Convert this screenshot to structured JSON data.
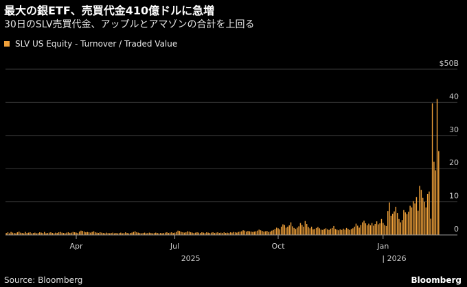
{
  "header": {
    "title": "最大の銀ETF、売買代金410億ドルに急増",
    "subtitle": "30日のSLV売買代金、アップルとアマゾンの合計を上回る"
  },
  "footer": {
    "source": "Source: Bloomberg",
    "brand": "Bloomberg"
  },
  "colors": {
    "background": "#000000",
    "bar": "#f0a13a",
    "grid": "#3a3a3a",
    "text": "#cfcfcf"
  },
  "chart_data": {
    "type": "bar",
    "series": [
      {
        "name": "SLV US Equity - Turnover / Traded Value",
        "values": [
          0.6,
          0.8,
          0.5,
          0.9,
          0.7,
          0.6,
          0.5,
          0.8,
          1.0,
          0.7,
          0.6,
          0.5,
          0.9,
          0.6,
          0.7,
          0.8,
          0.5,
          0.6,
          0.7,
          0.5,
          0.6,
          0.8,
          0.7,
          0.6,
          0.9,
          0.5,
          0.6,
          0.7,
          0.8,
          0.6,
          0.5,
          0.7,
          0.6,
          0.8,
          0.9,
          0.7,
          0.6,
          0.5,
          0.7,
          0.8,
          0.6,
          0.7,
          0.9,
          0.8,
          0.7,
          0.6,
          1.0,
          1.3,
          1.2,
          1.0,
          0.8,
          0.9,
          0.8,
          0.7,
          0.9,
          1.1,
          0.8,
          0.7,
          0.6,
          0.8,
          0.7,
          0.6,
          0.5,
          0.7,
          0.6,
          0.5,
          0.6,
          0.7,
          0.5,
          0.6,
          0.5,
          0.6,
          0.7,
          0.5,
          0.6,
          0.8,
          0.6,
          0.5,
          0.6,
          0.7,
          0.9,
          1.1,
          0.8,
          0.7,
          0.6,
          0.5,
          0.6,
          0.7,
          0.5,
          0.6,
          0.7,
          0.6,
          0.5,
          0.6,
          0.7,
          0.6,
          0.5,
          0.6,
          0.5,
          0.6,
          0.7,
          0.8,
          0.6,
          0.7,
          0.8,
          0.6,
          0.7,
          0.9,
          1.3,
          1.2,
          0.9,
          0.8,
          0.7,
          0.8,
          1.1,
          1.0,
          0.8,
          0.7,
          0.6,
          0.7,
          0.8,
          0.7,
          0.6,
          0.8,
          0.7,
          0.6,
          0.8,
          0.7,
          0.6,
          0.7,
          0.8,
          0.6,
          0.7,
          0.8,
          0.6,
          0.7,
          0.6,
          0.8,
          0.6,
          0.7,
          0.6,
          0.8,
          0.7,
          0.9,
          0.8,
          0.7,
          0.9,
          1.0,
          1.1,
          1.4,
          1.3,
          1.0,
          1.2,
          1.1,
          1.0,
          0.9,
          1.0,
          1.1,
          1.3,
          1.6,
          1.4,
          1.2,
          1.0,
          1.1,
          1.2,
          0.9,
          1.0,
          1.3,
          1.5,
          1.8,
          2.2,
          2.0,
          1.7,
          2.5,
          3.2,
          3.0,
          2.2,
          2.5,
          2.9,
          3.8,
          2.6,
          2.1,
          1.8,
          2.2,
          2.6,
          3.6,
          3.0,
          2.5,
          4.2,
          3.3,
          2.4,
          2.0,
          2.5,
          1.7,
          1.8,
          2.1,
          2.4,
          2.0,
          1.6,
          1.5,
          1.8,
          2.0,
          1.7,
          1.5,
          1.9,
          2.1,
          2.7,
          1.8,
          1.6,
          1.4,
          1.7,
          1.5,
          1.9,
          1.6,
          2.1,
          1.8,
          1.5,
          1.8,
          2.0,
          2.5,
          3.4,
          2.8,
          2.2,
          3.0,
          3.8,
          4.3,
          3.5,
          2.9,
          3.4,
          2.9,
          3.6,
          2.8,
          3.3,
          4.1,
          3.2,
          3.5,
          4.8,
          3.6,
          3.0,
          2.7,
          7.2,
          9.8,
          5.8,
          6.4,
          7.1,
          8.5,
          6.6,
          4.8,
          3.8,
          4.5,
          7.5,
          6.8,
          6.3,
          7.0,
          8.8,
          8.3,
          10.2,
          9.5,
          11.4,
          7.3,
          14.8,
          13.6,
          11.2,
          10.0,
          8.3,
          12.4,
          13.1,
          4.9,
          39.7,
          22.1,
          19.5,
          41.0,
          25.3
        ],
        "color": "#f0a13a"
      }
    ],
    "yaxis": {
      "min": 0,
      "max": 50,
      "ticks": [
        "0",
        "10",
        "20",
        "30",
        "40",
        "$50B"
      ]
    },
    "xaxis": {
      "month_ticks": [
        {
          "label": "Apr",
          "index": 44
        },
        {
          "label": "Jul",
          "index": 106
        },
        {
          "label": "Oct",
          "index": 171
        },
        {
          "label": "Jan",
          "index": 237
        }
      ],
      "year_labels": [
        {
          "label": "2025",
          "index": 116
        },
        {
          "label": "| 2026",
          "index": 244
        }
      ]
    },
    "grid": true,
    "legend": "top-left"
  }
}
